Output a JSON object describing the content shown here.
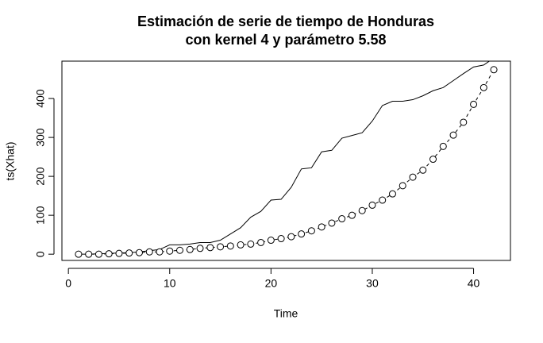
{
  "chart_data": {
    "type": "line",
    "title": [
      "Estimación de serie de tiempo de Honduras",
      "con kernel 4 y parámetro 5.58"
    ],
    "x_label": "Time",
    "y_label": "ts(Xhat)",
    "x": [
      1,
      2,
      3,
      4,
      5,
      6,
      7,
      8,
      9,
      10,
      11,
      12,
      13,
      14,
      15,
      16,
      17,
      18,
      19,
      20,
      21,
      22,
      23,
      24,
      25,
      26,
      27,
      28,
      29,
      30,
      31,
      32,
      33,
      34,
      35,
      36,
      37,
      38,
      39,
      40,
      41,
      42
    ],
    "series": [
      {
        "color": "#000000",
        "style": "line",
        "values": [
          0,
          0,
          1,
          2,
          3,
          4,
          6,
          9,
          12,
          24,
          24,
          26,
          30,
          30,
          36,
          52,
          68,
          95,
          110,
          139,
          141,
          172,
          219,
          222,
          263,
          267,
          298,
          305,
          312,
          342,
          382,
          393,
          393,
          397,
          407,
          420,
          428,
          446,
          464,
          481,
          486,
          504
        ]
      },
      {
        "color": "#000000",
        "style": "points-dashed",
        "values": [
          0,
          0,
          0,
          1,
          2,
          3,
          4,
          6,
          6,
          8,
          10,
          12,
          15,
          17,
          19,
          21,
          24,
          26,
          30,
          36,
          40,
          45,
          52,
          60,
          70,
          80,
          91,
          100,
          112,
          126,
          139,
          155,
          176,
          198,
          216,
          244,
          277,
          306,
          339,
          385,
          428,
          474
        ]
      }
    ],
    "xlim": [
      -0.64,
      43.64
    ],
    "xticks": [
      0,
      10,
      20,
      30,
      40
    ],
    "ylim": [
      -16,
      496
    ],
    "yticks": [
      0,
      100,
      200,
      300,
      400
    ],
    "grid": false
  }
}
